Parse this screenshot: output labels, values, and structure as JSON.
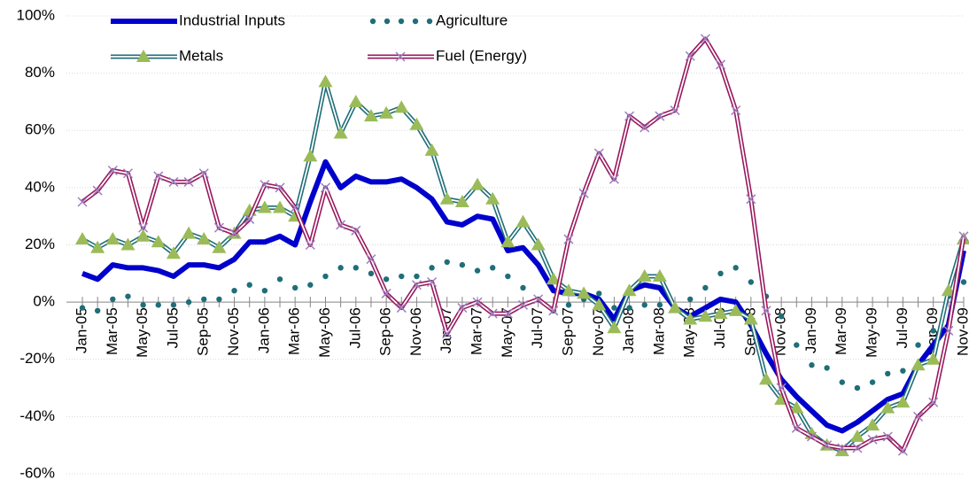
{
  "chart_data": {
    "type": "line",
    "categories": [
      "Jan-05",
      null,
      "Mar-05",
      null,
      "May-05",
      null,
      "Jul-05",
      null,
      "Sep-05",
      null,
      "Nov-05",
      null,
      "Jan-06",
      null,
      "Mar-06",
      null,
      "May-06",
      null,
      "Jul-06",
      null,
      "Sep-06",
      null,
      "Nov-06",
      null,
      "Jan-07",
      null,
      "Mar-07",
      null,
      "May-07",
      null,
      "Jul-07",
      null,
      "Sep-07",
      null,
      "Nov-07",
      null,
      "Jan-08",
      null,
      "Mar-08",
      null,
      "May-08",
      null,
      "Jul-08",
      null,
      "Sep-08",
      null,
      "Nov-08",
      null,
      "Jan-09",
      null,
      "Mar-09",
      null,
      "May-09",
      null,
      "Jul-09",
      null,
      "Sep-09",
      null,
      "Nov-09"
    ],
    "series": [
      {
        "name": "Industrial Inputs",
        "color": "#0000cc",
        "values": [
          10,
          8,
          13,
          12,
          12,
          11,
          9,
          13,
          13,
          12,
          15,
          21,
          21,
          23,
          20,
          35,
          49,
          40,
          44,
          42,
          42,
          43,
          40,
          36,
          28,
          27,
          30,
          29,
          18,
          19,
          13,
          4,
          3,
          3,
          1,
          -6,
          4,
          6,
          5,
          -2,
          -5,
          -2,
          1,
          0,
          -8,
          -18,
          -27,
          -33,
          -38,
          -43,
          -45,
          -42,
          -38,
          -34,
          -32,
          -22,
          -15,
          -8,
          18
        ]
      },
      {
        "name": "Agriculture",
        "color": "#1f6e78",
        "values": [
          -2,
          -3,
          1,
          2,
          -1,
          -1,
          -1,
          0,
          1,
          1,
          4,
          6,
          4,
          8,
          5,
          6,
          9,
          12,
          12,
          10,
          8,
          9,
          9,
          12,
          14,
          13,
          11,
          12,
          9,
          5,
          1,
          -3,
          -1,
          1,
          3,
          -2,
          -2,
          -1,
          -1,
          -2,
          1,
          5,
          10,
          12,
          7,
          2,
          -5,
          -15,
          -22,
          -23,
          -28,
          -30,
          -28,
          -25,
          -24,
          -15,
          -10,
          2,
          7
        ]
      },
      {
        "name": "Metals",
        "color": "#1f6e78",
        "values": [
          22,
          19,
          22,
          20,
          23,
          21,
          17,
          24,
          22,
          19,
          24,
          32,
          33,
          33,
          30,
          51,
          77,
          59,
          70,
          65,
          66,
          68,
          62,
          53,
          36,
          35,
          41,
          36,
          21,
          28,
          20,
          8,
          4,
          3,
          -1,
          -9,
          4,
          9,
          9,
          -2,
          -6,
          -5,
          -4,
          -3,
          -6,
          -27,
          -34,
          -37,
          -46,
          -50,
          -52,
          -47,
          -43,
          -37,
          -35,
          -22,
          -20,
          4,
          22
        ]
      },
      {
        "name": "Fuel (Energy)",
        "color": "#99195e",
        "values": [
          35,
          39,
          46,
          45,
          26,
          44,
          42,
          42,
          45,
          26,
          24,
          29,
          41,
          40,
          33,
          20,
          40,
          27,
          25,
          15,
          3,
          -2,
          6,
          7,
          -11,
          -2,
          0,
          -4,
          -4,
          -1,
          1,
          -3,
          22,
          38,
          52,
          43,
          65,
          61,
          65,
          67,
          86,
          92,
          83,
          67,
          36,
          -3,
          -30,
          -44,
          -47,
          -50,
          -51,
          -51,
          -48,
          -47,
          -52,
          -40,
          -35,
          -10,
          23
        ]
      }
    ],
    "marker_color": {
      "Metals": "#9bbb59",
      "Fuel (Energy)": "#9b7fc0"
    },
    "ylim": [
      -60,
      100
    ],
    "yticks": [
      {
        "value": -60,
        "label": "-60%"
      },
      {
        "value": -40,
        "label": "-40%"
      },
      {
        "value": -20,
        "label": "-20%"
      },
      {
        "value": 0,
        "label": "0%"
      },
      {
        "value": 20,
        "label": "20%"
      },
      {
        "value": 40,
        "label": "40%"
      },
      {
        "value": 60,
        "label": "60%"
      },
      {
        "value": 80,
        "label": "80%"
      },
      {
        "value": 100,
        "label": "100%"
      }
    ],
    "grid": true
  }
}
